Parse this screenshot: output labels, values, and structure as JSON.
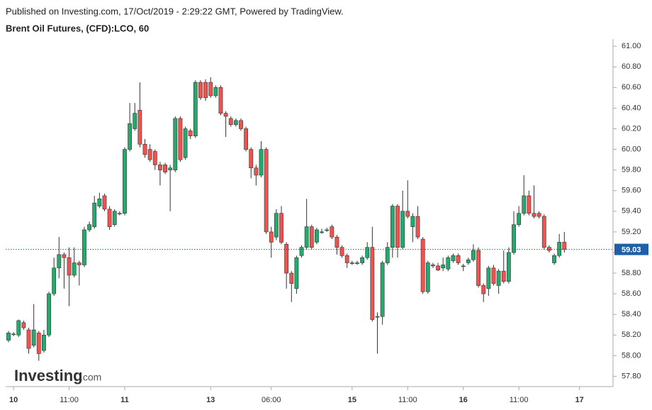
{
  "chart_data": {
    "type": "candlestick",
    "header": "Published on Investing.com, 17/Oct/2019 - 2:29:22 GMT, Powered by TradingView.",
    "title": "Brent Oil Futures, (CFD):LCO, 60",
    "watermark": [
      "Investing",
      ".com"
    ],
    "categories": [
      null,
      "10",
      null,
      null,
      null,
      null,
      null,
      null,
      null,
      null,
      null,
      null,
      "11:00",
      null,
      null,
      null,
      null,
      null,
      null,
      null,
      null,
      null,
      null,
      "11",
      null,
      null,
      null,
      null,
      null,
      null,
      null,
      null,
      null,
      null,
      null,
      null,
      null,
      null,
      null,
      null,
      "13",
      null,
      null,
      null,
      null,
      null,
      null,
      null,
      null,
      null,
      null,
      null,
      "06:00",
      null,
      null,
      null,
      null,
      null,
      null,
      null,
      null,
      null,
      null,
      null,
      null,
      null,
      null,
      null,
      "15",
      null,
      null,
      null,
      null,
      null,
      null,
      null,
      null,
      null,
      null,
      "11:00",
      null,
      null,
      null,
      null,
      null,
      null,
      null,
      null,
      null,
      null,
      "16",
      null,
      null,
      null,
      null,
      null,
      null,
      null,
      null,
      null,
      null,
      "11:00",
      null,
      null,
      null,
      null,
      null,
      null,
      null,
      null,
      null,
      null,
      null,
      "17"
    ],
    "open": [
      58.15,
      58.21,
      58.2,
      58.32,
      58.25,
      58.1,
      58.22,
      58.05,
      58.2,
      58.6,
      58.85,
      58.98,
      58.95,
      58.78,
      58.9,
      58.88,
      59.22,
      59.25,
      59.45,
      59.55,
      59.42,
      59.27,
      59.38,
      59.38,
      60.0,
      60.2,
      60.38,
      60.05,
      60.0,
      59.98,
      59.85,
      59.85,
      59.8,
      59.8,
      60.3,
      59.92,
      60.18,
      60.13,
      60.65,
      60.65,
      60.65,
      60.52,
      60.6,
      60.35,
      60.3,
      60.24,
      60.28,
      60.2,
      60.0,
      59.82,
      59.75,
      60.0,
      59.2,
      59.15,
      59.38,
      59.08,
      58.8,
      58.65,
      58.97,
      59.05,
      59.25,
      59.1,
      59.2,
      59.22,
      59.25,
      59.15,
      59.05,
      58.97,
      58.9,
      58.9,
      58.9,
      58.95,
      59.05,
      58.38,
      58.38,
      58.9,
      59.05,
      59.45,
      59.05,
      59.4,
      59.25,
      59.35,
      59.13,
      58.62,
      58.88,
      58.87,
      58.85,
      58.84,
      58.92,
      58.97,
      58.87,
      58.9,
      58.93,
      59.02,
      58.68,
      58.65,
      58.85,
      58.68,
      58.82,
      58.72,
      59.0,
      59.27,
      59.38,
      59.55,
      59.38,
      59.38,
      59.35,
      59.05,
      58.9,
      58.97,
      59.1,
      null,
      null,
      null
    ],
    "high": [
      58.24,
      58.23,
      58.35,
      58.34,
      58.27,
      58.5,
      58.24,
      58.25,
      58.62,
      58.95,
      59.15,
      59.0,
      59.05,
      59.05,
      58.92,
      59.25,
      59.3,
      59.55,
      59.58,
      59.57,
      59.45,
      59.42,
      59.4,
      60.02,
      60.45,
      60.45,
      60.65,
      60.1,
      60.05,
      60.0,
      59.88,
      59.87,
      59.85,
      60.32,
      60.32,
      60.22,
      60.2,
      60.67,
      60.67,
      60.68,
      60.7,
      60.62,
      60.62,
      60.37,
      60.32,
      60.3,
      60.3,
      60.22,
      60.02,
      59.85,
      60.08,
      60.02,
      59.25,
      59.42,
      59.45,
      59.1,
      58.82,
      58.97,
      59.07,
      59.52,
      59.27,
      59.24,
      59.23,
      59.24,
      59.27,
      59.17,
      59.07,
      58.99,
      58.92,
      58.92,
      58.97,
      59.1,
      59.25,
      58.42,
      58.92,
      59.1,
      59.47,
      59.47,
      59.6,
      59.7,
      59.38,
      59.45,
      59.15,
      58.92,
      58.9,
      58.9,
      58.95,
      58.97,
      58.99,
      58.99,
      58.89,
      58.95,
      59.08,
      59.05,
      58.7,
      58.87,
      58.88,
      58.84,
      59.02,
      59.05,
      59.4,
      59.45,
      59.75,
      59.6,
      59.65,
      59.4,
      59.37,
      59.07,
      58.99,
      59.18,
      59.2,
      null,
      null,
      null
    ],
    "low": [
      58.13,
      58.19,
      58.18,
      58.25,
      58.02,
      58.08,
      57.95,
      58.03,
      58.18,
      58.58,
      58.75,
      58.65,
      58.48,
      58.76,
      58.68,
      58.86,
      59.2,
      59.23,
      59.43,
      59.4,
      59.22,
      59.25,
      59.36,
      59.36,
      59.98,
      60.18,
      60.02,
      59.92,
      59.88,
      59.8,
      59.65,
      59.76,
      59.4,
      59.78,
      59.88,
      59.9,
      60.1,
      60.11,
      60.48,
      60.47,
      60.5,
      60.5,
      60.33,
      60.12,
      60.22,
      60.22,
      60.18,
      59.98,
      59.72,
      59.65,
      59.73,
      59.18,
      58.95,
      59.12,
      59.08,
      58.65,
      58.52,
      58.6,
      58.95,
      59.03,
      59.03,
      59.08,
      59.18,
      59.2,
      59.13,
      58.98,
      58.95,
      58.85,
      58.88,
      58.88,
      58.88,
      58.93,
      58.33,
      58.02,
      58.3,
      58.88,
      58.95,
      58.95,
      59.03,
      59.33,
      59.1,
      59.13,
      58.6,
      58.6,
      58.85,
      58.82,
      58.82,
      58.82,
      58.9,
      58.88,
      58.82,
      58.88,
      58.91,
      58.66,
      58.52,
      58.58,
      58.68,
      58.6,
      58.7,
      58.7,
      58.98,
      59.25,
      59.36,
      59.36,
      59.33,
      59.33,
      59.03,
      59.0,
      58.88,
      58.95,
      59.0,
      null,
      null,
      null
    ],
    "close": [
      58.22,
      58.21,
      58.34,
      58.27,
      58.07,
      58.25,
      58.02,
      58.2,
      58.6,
      58.85,
      58.98,
      58.95,
      58.78,
      58.9,
      58.88,
      59.22,
      59.27,
      59.48,
      59.52,
      59.42,
      59.25,
      59.4,
      59.38,
      60.0,
      60.25,
      60.35,
      60.05,
      59.95,
      59.9,
      59.85,
      59.8,
      59.78,
      59.82,
      60.3,
      59.9,
      60.2,
      60.13,
      60.65,
      60.5,
      60.5,
      60.52,
      60.6,
      60.35,
      60.32,
      60.24,
      60.28,
      60.2,
      60.0,
      59.82,
      59.75,
      60.0,
      59.2,
      59.1,
      59.38,
      59.1,
      58.8,
      58.7,
      58.95,
      59.05,
      59.25,
      59.05,
      59.22,
      59.2,
      59.22,
      59.15,
      59.05,
      58.97,
      58.9,
      58.9,
      58.9,
      58.95,
      59.05,
      58.35,
      58.38,
      58.9,
      59.05,
      59.45,
      59.05,
      59.4,
      59.35,
      59.35,
      59.15,
      58.62,
      58.9,
      58.87,
      58.83,
      58.88,
      58.95,
      58.97,
      58.9,
      58.87,
      58.93,
      59.02,
      58.68,
      58.6,
      58.85,
      58.7,
      58.82,
      58.72,
      59.0,
      59.27,
      59.38,
      59.55,
      59.38,
      59.35,
      59.35,
      59.05,
      59.02,
      58.97,
      59.1,
      59.03,
      null,
      null,
      null
    ],
    "up_color": "#26a96c",
    "down_color": "#ef5350",
    "last_price": {
      "value": 59.03,
      "label": "59.03"
    },
    "last_price_color": "#1f5fa8",
    "ylim": [
      57.7,
      61.07
    ],
    "yticks": [
      {
        "value": 57.8,
        "label": "57.80"
      },
      {
        "value": 58.0,
        "label": "58.00"
      },
      {
        "value": 58.2,
        "label": "58.20"
      },
      {
        "value": 58.4,
        "label": "58.40"
      },
      {
        "value": 58.6,
        "label": "58.60"
      },
      {
        "value": 58.8,
        "label": "58.80"
      },
      {
        "value": 59.0,
        "label": "59.00"
      },
      {
        "value": 59.2,
        "label": "59.20"
      },
      {
        "value": 59.4,
        "label": "59.40"
      },
      {
        "value": 59.6,
        "label": "59.60"
      },
      {
        "value": 59.8,
        "label": "59.80"
      },
      {
        "value": 60.0,
        "label": "60.00"
      },
      {
        "value": 60.2,
        "label": "60.20"
      },
      {
        "value": 60.4,
        "label": "60.40"
      },
      {
        "value": 60.6,
        "label": "60.60"
      },
      {
        "value": 60.8,
        "label": "60.80"
      },
      {
        "value": 61.0,
        "label": "61.00"
      }
    ]
  }
}
